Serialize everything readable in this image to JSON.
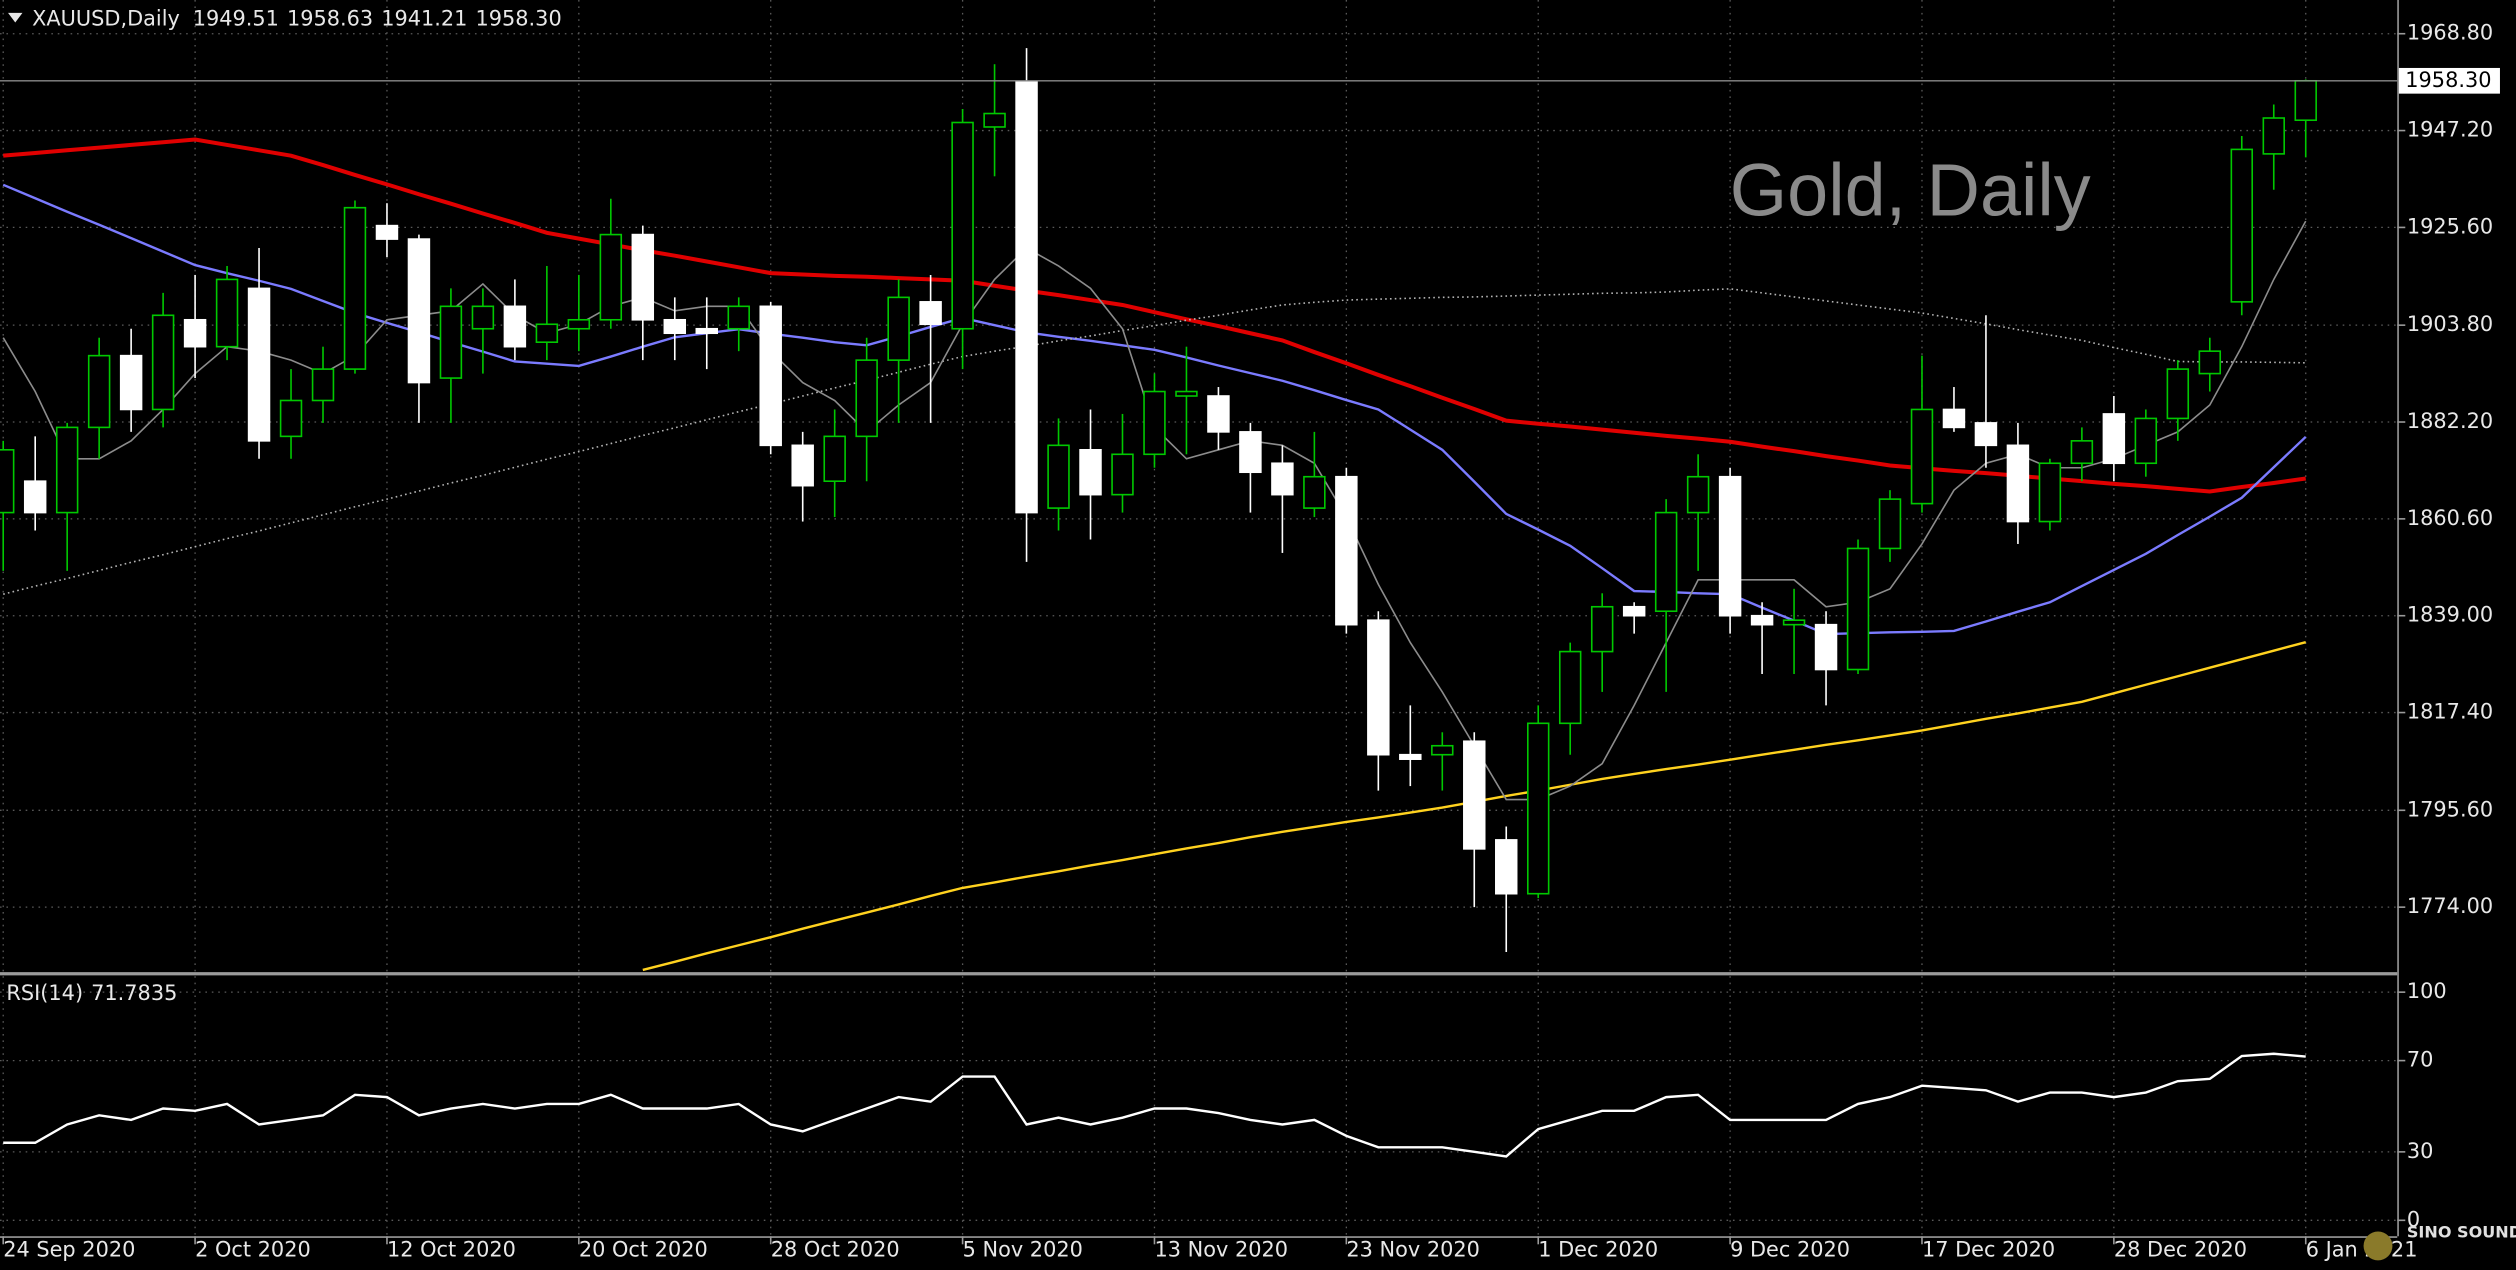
{
  "chart_data": [
    {
      "type": "candlestick",
      "title": "XAUUSD,Daily",
      "header_values": [
        "1949.51",
        "1958.63",
        "1941.21",
        "1958.30"
      ],
      "watermark": "Gold, Daily",
      "logo_text": "SINO SOUND",
      "categories": [
        "24 Sep 2020",
        null,
        null,
        null,
        null,
        null,
        "2 Oct 2020",
        null,
        null,
        null,
        null,
        null,
        "12 Oct 2020",
        null,
        null,
        null,
        null,
        null,
        "20 Oct 2020",
        null,
        null,
        null,
        null,
        null,
        "28 Oct 2020",
        null,
        null,
        null,
        null,
        null,
        "5 Nov 2020",
        null,
        null,
        null,
        null,
        null,
        "13 Nov 2020",
        null,
        null,
        null,
        null,
        null,
        "23 Nov 2020",
        null,
        null,
        null,
        null,
        null,
        "1 Dec 2020",
        null,
        null,
        null,
        null,
        null,
        "9 Dec 2020",
        null,
        null,
        null,
        null,
        null,
        "17 Dec 2020",
        null,
        null,
        null,
        null,
        null,
        "28 Dec 2020",
        null,
        null,
        null,
        null,
        null,
        "6 Jan 2021"
      ],
      "open": [
        1862,
        1869,
        1862,
        1881,
        1897,
        1885,
        1905,
        1899,
        1912,
        1879,
        1887,
        1894,
        1926,
        1923,
        1892,
        1903,
        1908,
        1900,
        1903,
        1905,
        1924,
        1905,
        1903,
        1903,
        1908,
        1877,
        1869,
        1879,
        1896,
        1909,
        1903,
        1948,
        1958,
        1863,
        1876,
        1866,
        1875,
        1888,
        1888,
        1880,
        1873,
        1863,
        1870,
        1838,
        1808,
        1808,
        1811,
        1789,
        1777,
        1815,
        1831,
        1841,
        1840,
        1862,
        1870,
        1839,
        1837,
        1837,
        1827,
        1854,
        1864,
        1885,
        1882,
        1877,
        1860,
        1873,
        1884,
        1873,
        1883,
        1893,
        1909,
        1942,
        1949.51
      ],
      "high": [
        1878,
        1879,
        1882,
        1901,
        1903,
        1911,
        1915,
        1917,
        1921,
        1894,
        1899,
        1931.6,
        1931,
        1924,
        1912,
        1912,
        1914,
        1917,
        1915,
        1932,
        1926,
        1910,
        1910,
        1910,
        1909,
        1880,
        1885,
        1901,
        1914,
        1915,
        1952,
        1962,
        1965.6,
        1883,
        1885,
        1884,
        1893,
        1899,
        1890,
        1882,
        1877,
        1880,
        1872,
        1840,
        1819,
        1813,
        1813,
        1792,
        1819,
        1833,
        1844,
        1842,
        1865,
        1875,
        1872,
        1842,
        1845,
        1840,
        1856,
        1867,
        1897,
        1890,
        1906,
        1882,
        1874,
        1881,
        1888,
        1885,
        1896,
        1901,
        1946,
        1953,
        1958.63
      ],
      "low": [
        1849,
        1858,
        1849,
        1874,
        1880,
        1881,
        1892,
        1896,
        1874,
        1874,
        1882,
        1893,
        1919,
        1882,
        1882,
        1893,
        1896,
        1896,
        1898,
        1903,
        1896,
        1896,
        1894,
        1898,
        1875,
        1860,
        1861,
        1869,
        1882,
        1882,
        1894,
        1937,
        1851,
        1858,
        1856,
        1862,
        1872,
        1875,
        1876,
        1862,
        1853,
        1861,
        1835,
        1800,
        1801,
        1800,
        1774,
        1764,
        1776,
        1808,
        1822,
        1835,
        1822,
        1849,
        1835,
        1826,
        1826,
        1819,
        1826,
        1851,
        1862,
        1880,
        1872,
        1855,
        1858,
        1869,
        1869,
        1870,
        1878,
        1889,
        1906,
        1934,
        1941.21
      ],
      "close": [
        1876,
        1862,
        1881,
        1897,
        1885,
        1906,
        1899,
        1914,
        1878,
        1887,
        1894,
        1930,
        1923,
        1891,
        1908,
        1908,
        1899,
        1904,
        1905,
        1924,
        1905,
        1902,
        1902,
        1908,
        1877,
        1868,
        1879,
        1896,
        1910,
        1904,
        1949,
        1951,
        1862,
        1877,
        1866,
        1875,
        1889,
        1889,
        1880,
        1871,
        1866,
        1870,
        1837,
        1808,
        1807,
        1810,
        1787,
        1777,
        1815,
        1831,
        1841,
        1839,
        1862,
        1870,
        1839,
        1837,
        1838,
        1827,
        1854,
        1865,
        1885,
        1881,
        1877,
        1860,
        1873,
        1878,
        1873,
        1883,
        1894,
        1898,
        1943,
        1950,
        1958.3
      ],
      "up_color": "#000000",
      "down_color": "#ffffff",
      "wick_color": "#00c800",
      "overlays": [
        {
          "color": "#e00000",
          "width": 2.5,
          "values": [
            1941.6,
            1942.2,
            1942.8,
            1943.4,
            1944.0,
            1944.6,
            1945.2,
            1944.0,
            1942.8,
            1941.6,
            1939.5,
            1937.3,
            1935.2,
            1933.0,
            1930.9,
            1928.7,
            1926.6,
            1924.4,
            1923.1,
            1921.8,
            1920.5,
            1919.3,
            1918.0,
            1916.7,
            1915.4,
            1915.1,
            1914.8,
            1914.6,
            1914.3,
            1914.0,
            1913.7,
            1912.6,
            1911.5,
            1910.5,
            1909.4,
            1908.3,
            1906.7,
            1905.1,
            1903.6,
            1902.0,
            1900.4,
            1897.8,
            1895.3,
            1892.7,
            1890.2,
            1887.6,
            1885.1,
            1882.5,
            1881.8,
            1881.2,
            1880.5,
            1879.8,
            1879.1,
            1878.5,
            1877.8,
            1876.7,
            1875.7,
            1874.6,
            1873.6,
            1872.5,
            1871.9,
            1871.3,
            1870.8,
            1870.2,
            1869.6,
            1869.0,
            1868.4,
            1867.9,
            1867.3,
            1866.7,
            1867.7,
            1868.6,
            1869.6
          ]
        },
        {
          "color": "#7b7bff",
          "width": 1.5,
          "values": [
            1935.1,
            1932.1,
            1929.1,
            1926.2,
            1923.2,
            1920.2,
            1917.2,
            1915.4,
            1913.7,
            1911.9,
            1909.2,
            1906.5,
            1904.3,
            1902.2,
            1900.0,
            1897.9,
            1895.7,
            1895.2,
            1894.7,
            1896.8,
            1899.0,
            1901.1,
            1902.0,
            1902.9,
            1901.9,
            1901.0,
            1900.0,
            1899.3,
            1901.3,
            1903.4,
            1905.4,
            1903.8,
            1902.2,
            1901.2,
            1900.3,
            1899.3,
            1898.3,
            1896.6,
            1894.8,
            1893.1,
            1891.4,
            1889.3,
            1887.1,
            1885.0,
            1880.5,
            1876.0,
            1868.9,
            1861.7,
            1858.2,
            1854.6,
            1849.6,
            1844.5,
            1844.3,
            1844.0,
            1843.8,
            1840.8,
            1837.9,
            1834.9,
            1835.1,
            1835.3,
            1835.4,
            1835.6,
            1837.7,
            1839.9,
            1842.0,
            1845.6,
            1849.2,
            1852.8,
            1857.0,
            1861.1,
            1865.3,
            1872.1,
            1878.9
          ]
        },
        {
          "color": "#ffd21f",
          "width": 1.5,
          "values": [
            null,
            null,
            null,
            null,
            null,
            null,
            null,
            null,
            null,
            null,
            null,
            null,
            null,
            null,
            null,
            null,
            null,
            null,
            null,
            null,
            1760.0,
            1761.8,
            1763.7,
            1765.5,
            1767.3,
            1769.2,
            1771.0,
            1772.8,
            1774.6,
            1776.5,
            1778.3,
            1779.5,
            1780.8,
            1782.0,
            1783.3,
            1784.5,
            1785.8,
            1787.1,
            1788.3,
            1789.6,
            1790.8,
            1791.9,
            1793.0,
            1794.0,
            1795.1,
            1796.2,
            1797.5,
            1798.8,
            1800.0,
            1801.3,
            1802.6,
            1803.7,
            1804.8,
            1805.8,
            1806.9,
            1808.0,
            1809.1,
            1810.2,
            1811.2,
            1812.3,
            1813.4,
            1814.7,
            1816.0,
            1817.2,
            1818.5,
            1819.8,
            1821.7,
            1823.6,
            1825.5,
            1827.4,
            1829.3,
            1831.2,
            1833.1
          ]
        },
        {
          "color": "#b4b4b4",
          "width": 1,
          "dash": "1 2",
          "values": [
            1843.8,
            1845.6,
            1847.3,
            1849.1,
            1850.9,
            1852.6,
            1854.4,
            1856.2,
            1857.9,
            1859.7,
            1861.5,
            1863.3,
            1865.0,
            1866.8,
            1868.6,
            1870.3,
            1872.1,
            1873.9,
            1875.6,
            1877.4,
            1879.2,
            1880.9,
            1882.7,
            1884.5,
            1886.2,
            1888.0,
            1889.8,
            1891.5,
            1893.3,
            1895.1,
            1896.8,
            1898.0,
            1899.1,
            1900.3,
            1901.4,
            1902.6,
            1903.7,
            1904.9,
            1906.0,
            1907.2,
            1908.3,
            1908.9,
            1909.4,
            1909.6,
            1909.8,
            1910.0,
            1910.1,
            1910.3,
            1910.5,
            1910.7,
            1910.9,
            1911.0,
            1911.2,
            1911.6,
            1911.9,
            1911.0,
            1910.1,
            1909.2,
            1908.3,
            1907.4,
            1906.5,
            1905.3,
            1904.1,
            1902.8,
            1901.6,
            1900.4,
            1898.8,
            1897.3,
            1895.7,
            1895.6,
            1895.6,
            1895.5,
            1895.4
          ]
        },
        {
          "color": "#8c8c8c",
          "width": 1,
          "values": [
            1901,
            1889,
            1874,
            1874,
            1878,
            1885,
            1893,
            1899,
            1898,
            1896,
            1893,
            1897,
            1905,
            1906,
            1907,
            1913,
            1906,
            1902,
            1904,
            1908,
            1910,
            1907,
            1908,
            1908,
            1898,
            1891,
            1887,
            1880,
            1886,
            1891,
            1904,
            1914,
            1921,
            1917,
            1912,
            1903,
            1881,
            1874,
            1876,
            1878,
            1877,
            1873,
            1861,
            1846,
            1833,
            1822,
            1810,
            1798,
            1798,
            1801,
            1806,
            1819,
            1833,
            1847,
            1847,
            1847,
            1847,
            1841,
            1842,
            1845,
            1855,
            1867,
            1873,
            1875,
            1872,
            1872,
            1874,
            1877,
            1880,
            1886,
            1899,
            1914,
            1927
          ]
        }
      ],
      "price_line": {
        "value": 1958.3,
        "label": "1958.30"
      },
      "ylim": [
        1759.32,
        1976.32
      ],
      "yticks": [
        {
          "value": 1968.8,
          "label": "1968.80"
        },
        {
          "value": 1947.2,
          "label": "1947.20"
        },
        {
          "value": 1925.6,
          "label": "1925.60"
        },
        {
          "value": 1903.8,
          "label": "1903.80"
        },
        {
          "value": 1882.2,
          "label": "1882.20"
        },
        {
          "value": 1860.6,
          "label": "1860.60"
        },
        {
          "value": 1839.0,
          "label": "1839.00"
        },
        {
          "value": 1817.4,
          "label": "1817.40"
        },
        {
          "value": 1795.6,
          "label": "1795.60"
        },
        {
          "value": 1774.0,
          "label": "1774.00"
        }
      ],
      "grid": true
    },
    {
      "type": "line",
      "title": "RSI(14)",
      "color": "#ffffff",
      "values": [
        34,
        34,
        42,
        46,
        44,
        49,
        48,
        51,
        42,
        44,
        46,
        55,
        54,
        46,
        49,
        51,
        49,
        51,
        51,
        55,
        49,
        49,
        49,
        51,
        42,
        39,
        44,
        49,
        54,
        52,
        63,
        63,
        42,
        45,
        42,
        45,
        49,
        49,
        47,
        44,
        42,
        44,
        37,
        32,
        32,
        32,
        30,
        28,
        40,
        44,
        48,
        48,
        54,
        55,
        44,
        44,
        44,
        44,
        51,
        54,
        59,
        58,
        57,
        52,
        56,
        56,
        54,
        56,
        61,
        62,
        72,
        73,
        71.7835
      ],
      "ylim": [
        -7,
        107
      ],
      "yticks": [
        100,
        70,
        30,
        0
      ],
      "grid": true
    }
  ]
}
